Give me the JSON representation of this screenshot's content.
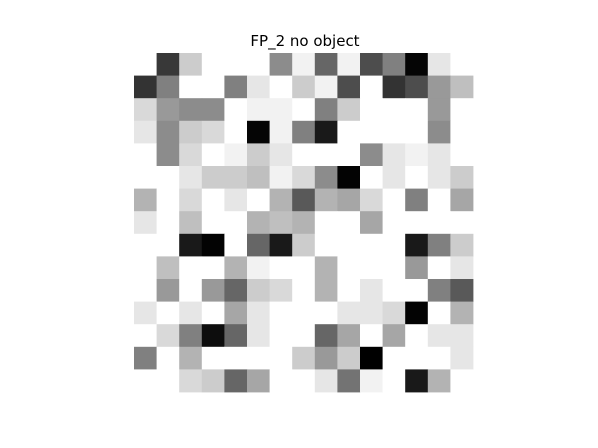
{
  "chart_data": {
    "type": "heatmap",
    "title": "FP_2 no object",
    "xlabel": "",
    "ylabel": "",
    "axes_visible": false,
    "colormap": "gray_r",
    "value_range": [
      0,
      1
    ],
    "rows": 15,
    "cols": 15,
    "values": [
      [
        0.0,
        0.78,
        0.2,
        0.0,
        0.0,
        0.0,
        0.45,
        0.05,
        0.6,
        0.05,
        0.7,
        0.5,
        0.98,
        0.1,
        0.0
      ],
      [
        0.8,
        0.5,
        0.0,
        0.0,
        0.5,
        0.1,
        0.0,
        0.2,
        0.05,
        0.7,
        0.0,
        0.8,
        0.7,
        0.4,
        0.25
      ],
      [
        0.15,
        0.4,
        0.45,
        0.45,
        0.0,
        0.05,
        0.05,
        0.0,
        0.5,
        0.2,
        0.0,
        0.0,
        0.0,
        0.4,
        0.0
      ],
      [
        0.1,
        0.45,
        0.2,
        0.15,
        0.0,
        0.98,
        0.05,
        0.5,
        0.9,
        0.0,
        0.0,
        0.0,
        0.0,
        0.45,
        0.0
      ],
      [
        0.0,
        0.45,
        0.15,
        0.0,
        0.05,
        0.2,
        0.1,
        0.0,
        0.0,
        0.0,
        0.45,
        0.1,
        0.05,
        0.1,
        0.0
      ],
      [
        0.0,
        0.0,
        0.1,
        0.2,
        0.2,
        0.25,
        0.05,
        0.15,
        0.45,
        0.99,
        0.0,
        0.1,
        0.0,
        0.1,
        0.2
      ],
      [
        0.3,
        0.0,
        0.15,
        0.0,
        0.1,
        0.0,
        0.3,
        0.65,
        0.3,
        0.35,
        0.15,
        0.0,
        0.5,
        0.0,
        0.35
      ],
      [
        0.1,
        0.0,
        0.25,
        0.0,
        0.0,
        0.3,
        0.25,
        0.3,
        0.0,
        0.0,
        0.35,
        0.0,
        0.0,
        0.0,
        0.0
      ],
      [
        0.0,
        0.0,
        0.9,
        0.99,
        0.0,
        0.6,
        0.9,
        0.2,
        0.0,
        0.0,
        0.0,
        0.0,
        0.9,
        0.5,
        0.2
      ],
      [
        0.0,
        0.25,
        0.0,
        0.0,
        0.3,
        0.05,
        0.0,
        0.0,
        0.3,
        0.0,
        0.0,
        0.0,
        0.4,
        0.0,
        0.1
      ],
      [
        0.0,
        0.4,
        0.0,
        0.4,
        0.6,
        0.2,
        0.15,
        0.0,
        0.3,
        0.0,
        0.1,
        0.0,
        0.0,
        0.5,
        0.65
      ],
      [
        0.1,
        0.0,
        0.1,
        0.0,
        0.35,
        0.1,
        0.0,
        0.0,
        0.0,
        0.1,
        0.1,
        0.15,
        0.99,
        0.0,
        0.3
      ],
      [
        0.0,
        0.15,
        0.5,
        0.95,
        0.6,
        0.1,
        0.0,
        0.0,
        0.6,
        0.35,
        0.0,
        0.35,
        0.0,
        0.1,
        0.1
      ],
      [
        0.5,
        0.0,
        0.3,
        0.0,
        0.0,
        0.0,
        0.0,
        0.2,
        0.4,
        0.2,
        1.0,
        0.0,
        0.0,
        0.0,
        0.1
      ],
      [
        0.0,
        0.0,
        0.15,
        0.2,
        0.6,
        0.35,
        0.0,
        0.0,
        0.1,
        0.55,
        0.05,
        0.0,
        0.9,
        0.3,
        0.0
      ]
    ]
  }
}
